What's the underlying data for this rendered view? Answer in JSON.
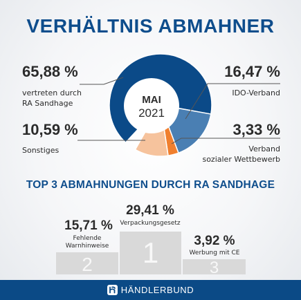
{
  "title": "VERHÄLTNIS ABMAHNER",
  "colors": {
    "title": "#0e4d8c",
    "text": "#2b2b2b",
    "podium": "#d9d9d9",
    "footer": "#0b4a86"
  },
  "chart_data": {
    "type": "pie",
    "center_label": {
      "month": "MAI",
      "year": "2021"
    },
    "slices": [
      {
        "value": 65.88,
        "value_label": "65,88 %",
        "label_lines": [
          "vertreten durch",
          "RA Sandhage"
        ],
        "color": "#0b4a88"
      },
      {
        "value": 16.47,
        "value_label": "16,47 %",
        "label_lines": [
          "IDO-Verband"
        ],
        "color": "#4a7fb3"
      },
      {
        "value": 3.33,
        "value_label": "3,33 %",
        "label_lines": [
          "Verband",
          "sozialer Wettbewerb"
        ],
        "color": "#f07f2e"
      },
      {
        "value": 10.59,
        "value_label": "10,59 %",
        "label_lines": [
          "Sonstiges"
        ],
        "color": "#f6c39d"
      }
    ]
  },
  "top3": {
    "heading": "TOP 3 ABMAHNUNGEN DURCH RA SANDHAGE",
    "places": [
      {
        "rank": "1",
        "value": 29.41,
        "value_label": "29,41 %",
        "label_lines": [
          "Verpackungsgesetz"
        ]
      },
      {
        "rank": "2",
        "value": 15.71,
        "value_label": "15,71 %",
        "label_lines": [
          "Fehlende",
          "Warnhinweise"
        ]
      },
      {
        "rank": "3",
        "value": 3.92,
        "value_label": "3,92 %",
        "label_lines": [
          "Werbung mit CE"
        ]
      }
    ]
  },
  "footer": {
    "brand": "HÄNDLERBUND",
    "logo_icon": "haendlerbund-logo-icon"
  }
}
